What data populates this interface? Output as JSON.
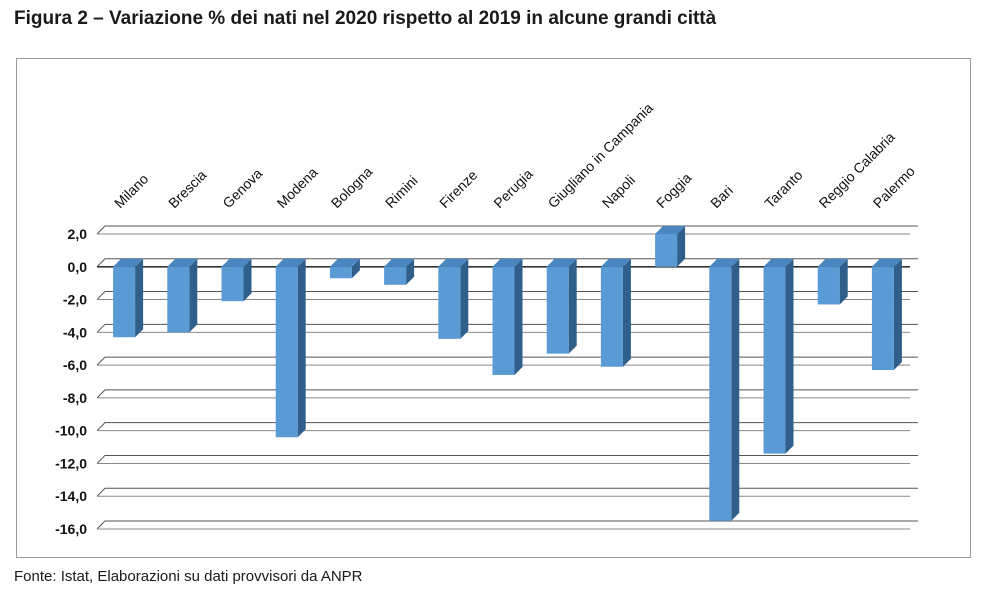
{
  "title": "Figura 2 – Variazione % dei nati nel 2020 rispetto al 2019 in alcune grandi città",
  "source": "Fonte: Istat, Elaborazioni su dati provvisori da ANPR",
  "colors": {
    "bar_front": "#5b9bd5",
    "bar_side": "#2f5f8a",
    "bar_top": "#4a86c0",
    "grid": "#555555",
    "axis": "#333333"
  },
  "chart_data": {
    "type": "bar",
    "title": "Figura 2 – Variazione % dei nati nel 2020 rispetto al 2019 in alcune grandi città",
    "xlabel": "",
    "ylabel": "",
    "ylim": [
      -16,
      2
    ],
    "yticks": [
      2,
      0,
      -2,
      -4,
      -6,
      -8,
      -10,
      -12,
      -14,
      -16
    ],
    "ytick_labels": [
      "2,0",
      "0,0",
      "-2,0",
      "-4,0",
      "-6,0",
      "-8,0",
      "-10,0",
      "-12,0",
      "-14,0",
      "-16,0"
    ],
    "grid": true,
    "categories": [
      "Milano",
      "Brescia",
      "Genova",
      "Modena",
      "Bologna",
      "Rimini",
      "Firenze",
      "Perugia",
      "Giugliano in Campania",
      "Napoli",
      "Foggia",
      "Bari",
      "Taranto",
      "Reggio Calabria",
      "Palermo"
    ],
    "values": [
      -4.3,
      -4.0,
      -2.1,
      -10.4,
      -0.7,
      -1.1,
      -4.4,
      -6.6,
      -5.3,
      -6.1,
      2.0,
      -15.5,
      -11.4,
      -2.3,
      -6.3
    ]
  }
}
